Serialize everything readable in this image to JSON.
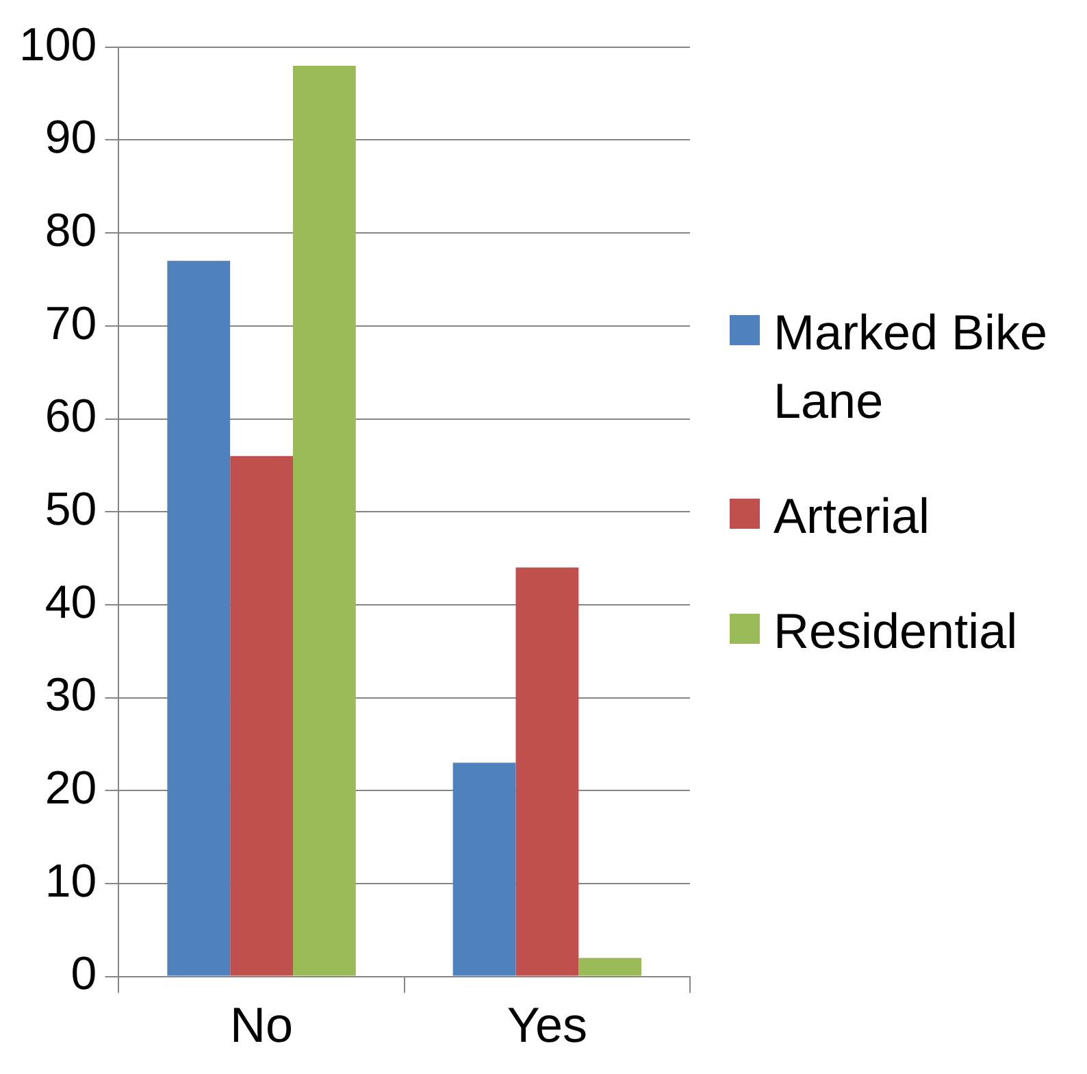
{
  "chart_data": {
    "type": "bar",
    "categories": [
      "No",
      "Yes"
    ],
    "series": [
      {
        "name": "Marked Bike Lane",
        "color": "#4f81bd",
        "values": [
          77,
          23
        ]
      },
      {
        "name": "Arterial",
        "color": "#c0504d",
        "values": [
          56,
          44
        ]
      },
      {
        "name": "Residential",
        "color": "#9bbb59",
        "values": [
          98,
          2
        ]
      }
    ],
    "ylim": [
      0,
      100
    ],
    "yticks": [
      0,
      10,
      20,
      30,
      40,
      50,
      60,
      70,
      80,
      90,
      100
    ],
    "grid": "y",
    "legend": "right"
  }
}
